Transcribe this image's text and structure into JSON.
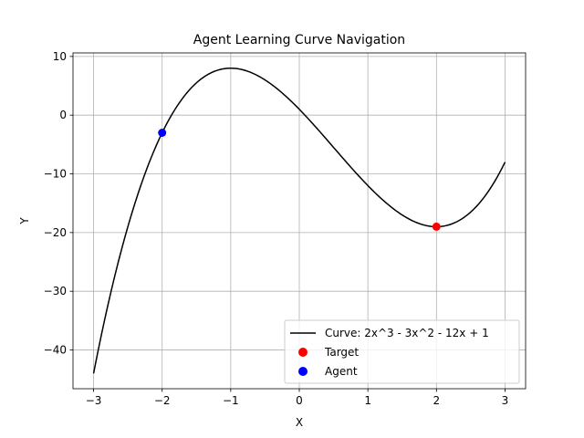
{
  "chart_data": {
    "type": "line",
    "title": "Agent Learning Curve Navigation",
    "xlabel": "X",
    "ylabel": "Y",
    "xlim": [
      -3.3,
      3.3
    ],
    "ylim": [
      -46.6,
      10.6
    ],
    "x_ticks": [
      -3,
      -2,
      -1,
      0,
      1,
      2,
      3
    ],
    "y_ticks": [
      -40,
      -30,
      -20,
      -10,
      0,
      10
    ],
    "x_tick_labels": [
      "−3",
      "−2",
      "−1",
      "0",
      "1",
      "2",
      "3"
    ],
    "y_tick_labels": [
      "−40",
      "−30",
      "−20",
      "−10",
      "0",
      "10"
    ],
    "grid": true,
    "legend_position": "lower-right",
    "curve": {
      "name": "Curve: 2x^3 - 3x^2 - 12x + 1",
      "color": "#000000",
      "x_range": [
        -3,
        3
      ],
      "coefficients": [
        2,
        -3,
        -12,
        1
      ]
    },
    "points": [
      {
        "name": "Target",
        "x": 2,
        "y": -19,
        "color": "#ff0000"
      },
      {
        "name": "Agent",
        "x": -2,
        "y": -3,
        "color": "#0000ff"
      }
    ]
  }
}
